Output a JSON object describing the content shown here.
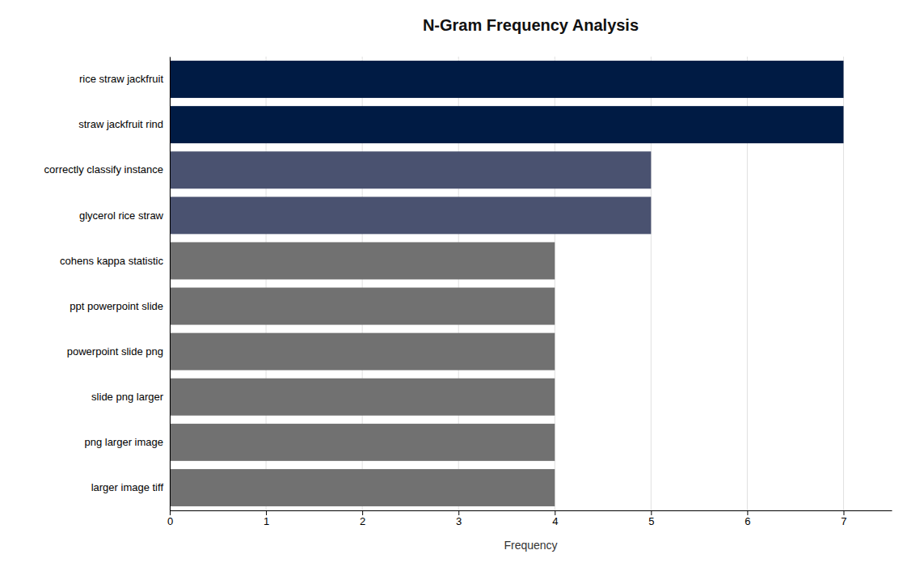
{
  "chart_data": {
    "type": "bar",
    "orientation": "horizontal",
    "title": "N-Gram Frequency Analysis",
    "categories": [
      "larger image tiff",
      "png larger image",
      "slide png larger",
      "powerpoint slide png",
      "ppt powerpoint slide",
      "cohens kappa statistic",
      "glycerol rice straw",
      "correctly classify instance",
      "straw jackfruit rind",
      "rice straw jackfruit"
    ],
    "values": [
      4,
      4,
      4,
      4,
      4,
      4,
      5,
      5,
      7,
      7
    ],
    "colors": [
      "#717171",
      "#717171",
      "#717171",
      "#717171",
      "#717171",
      "#717171",
      "#4a5270",
      "#4a5270",
      "#001b44",
      "#001b44"
    ],
    "xlabel": "Frequency",
    "xlim": [
      0,
      7.5
    ],
    "xticks": [
      0,
      1,
      2,
      3,
      4,
      5,
      6,
      7
    ],
    "grid": true
  }
}
